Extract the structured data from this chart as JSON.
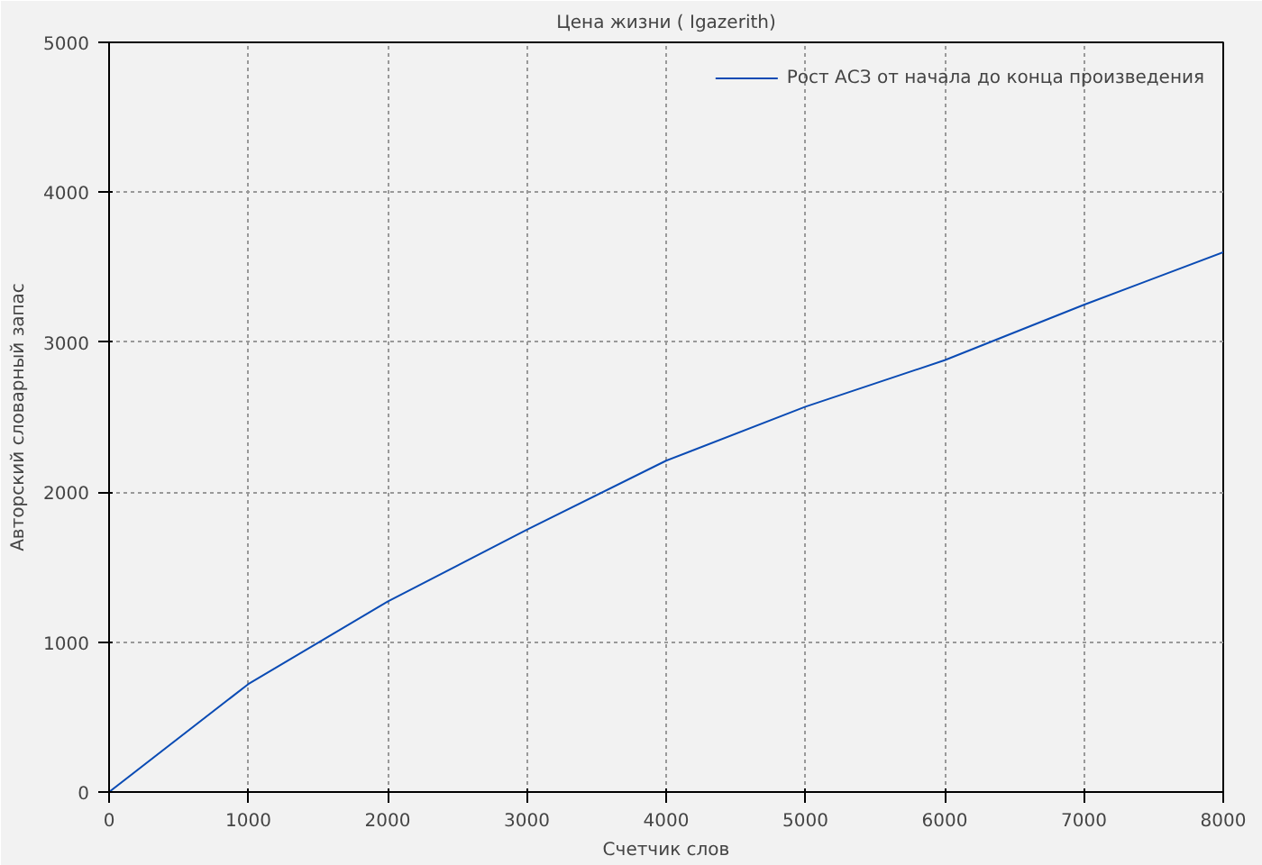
{
  "chart_data": {
    "type": "line",
    "title": "Цена жизни ( Igazerith)",
    "xlabel": "Счетчик слов",
    "ylabel": "Авторский словарный запас",
    "x": [
      0,
      1000,
      2000,
      3000,
      4000,
      5000,
      6000,
      7000,
      8000
    ],
    "series": [
      {
        "name": "Рост АСЗ от начала до конца произведения",
        "color": "#0a4bb4",
        "values": [
          0,
          720,
          1270,
          1750,
          2210,
          2570,
          2880,
          3250,
          3600
        ]
      }
    ],
    "xlim": [
      0,
      8000
    ],
    "ylim": [
      0,
      5000
    ],
    "xticks": [
      0,
      1000,
      2000,
      3000,
      4000,
      5000,
      6000,
      7000,
      8000
    ],
    "yticks": [
      0,
      1000,
      2000,
      3000,
      4000,
      5000
    ],
    "grid": true,
    "legend": "top right",
    "marker": "none",
    "line_style": "solid"
  }
}
